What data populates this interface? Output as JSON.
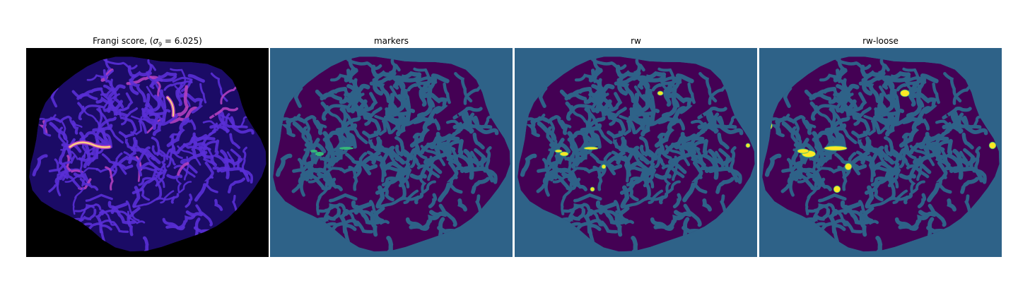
{
  "panels": [
    {
      "title_prefix": "Frangi score, (",
      "title_sigma": "σ",
      "title_sub": "9",
      "title_suffix": " = 6.025)"
    },
    {
      "title": "markers"
    },
    {
      "title": "rw"
    },
    {
      "title": "rw-loose"
    }
  ],
  "colors": {
    "frangi_background": "#000000",
    "frangi_tissue": "#1b0b66",
    "frangi_vessel_low": "#5a2fd6",
    "frangi_vessel_mid": "#b33fc0",
    "frangi_vessel_high": "#ffd080",
    "segmentation_background": "#2e6288",
    "segmentation_tissue": "#440154",
    "segmentation_marker": "#35b779",
    "segmentation_highlight": "#fde725"
  }
}
